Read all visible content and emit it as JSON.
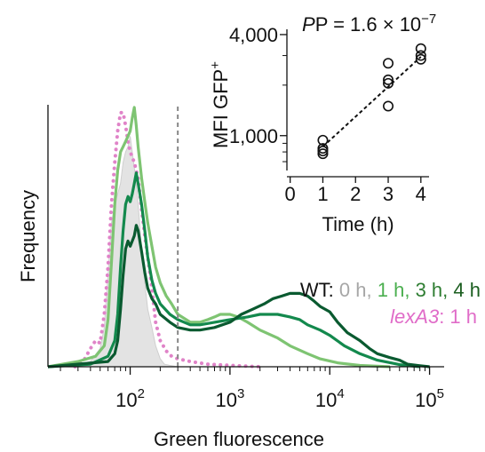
{
  "chart_data": [
    {
      "type": "line",
      "xlabel": "Green fluorescence",
      "ylabel": "Frequency",
      "x_scale": "log",
      "xlim": [
        15,
        140000
      ],
      "ylim": [
        0,
        1
      ],
      "x_ticks": [
        {
          "value": 100,
          "base": "10",
          "exp": "2"
        },
        {
          "value": 1000,
          "base": "10",
          "exp": "3"
        },
        {
          "value": 10000,
          "base": "10",
          "exp": "4"
        },
        {
          "value": 100000,
          "base": "10",
          "exp": "5"
        }
      ],
      "gate": 300,
      "grid": false,
      "legend_position": "right",
      "legend": {
        "wt_prefix": "WT: ",
        "wt_entries": [
          {
            "label": "0 h",
            "color": "#a7a7a7"
          },
          {
            "label": "1 h",
            "color": "#4caf50"
          },
          {
            "label": "3 h",
            "color": "#2e7d32"
          },
          {
            "label": "4 h",
            "color": "#1b5e20"
          }
        ],
        "wt_separator": ", ",
        "mut_label": "lexA3",
        "mut_suffix": ": 1 h"
      },
      "series": [
        {
          "key": "wt0h",
          "style": "fill",
          "color": "#e3e3e3",
          "stroke": "#cfcfcf",
          "points": [
            [
              15,
              0
            ],
            [
              22,
              0.005
            ],
            [
              30,
              0.01
            ],
            [
              40,
              0.02
            ],
            [
              50,
              0.07
            ],
            [
              55,
              0.15
            ],
            [
              60,
              0.35
            ],
            [
              65,
              0.55
            ],
            [
              70,
              0.62
            ],
            [
              75,
              0.66
            ],
            [
              80,
              0.7
            ],
            [
              85,
              0.78
            ],
            [
              90,
              0.82
            ],
            [
              95,
              0.84
            ],
            [
              100,
              0.88
            ],
            [
              105,
              0.82
            ],
            [
              110,
              0.76
            ],
            [
              115,
              0.7
            ],
            [
              120,
              0.62
            ],
            [
              130,
              0.45
            ],
            [
              140,
              0.32
            ],
            [
              150,
              0.22
            ],
            [
              165,
              0.15
            ],
            [
              180,
              0.08
            ],
            [
              200,
              0.03
            ],
            [
              220,
              0.01
            ],
            [
              250,
              0.005
            ],
            [
              300,
              0
            ]
          ]
        },
        {
          "key": "lexA3",
          "style": "dotted",
          "color": "#e083c8",
          "points": [
            [
              28,
              0
            ],
            [
              35,
              0.03
            ],
            [
              40,
              0.07
            ],
            [
              45,
              0.1
            ],
            [
              50,
              0.09
            ],
            [
              55,
              0.2
            ],
            [
              60,
              0.38
            ],
            [
              65,
              0.62
            ],
            [
              70,
              0.78
            ],
            [
              75,
              0.9
            ],
            [
              80,
              0.97
            ],
            [
              85,
              0.97
            ],
            [
              90,
              0.92
            ],
            [
              95,
              0.86
            ],
            [
              100,
              0.82
            ],
            [
              110,
              0.78
            ],
            [
              120,
              0.72
            ],
            [
              130,
              0.6
            ],
            [
              140,
              0.5
            ],
            [
              150,
              0.42
            ],
            [
              165,
              0.3
            ],
            [
              180,
              0.17
            ],
            [
              200,
              0.1
            ],
            [
              230,
              0.06
            ],
            [
              260,
              0.04
            ],
            [
              300,
              0.03
            ],
            [
              400,
              0.02
            ],
            [
              600,
              0.01
            ],
            [
              1000,
              0.005
            ],
            [
              2000,
              0
            ]
          ]
        },
        {
          "key": "wt1h",
          "style": "line",
          "color": "#7ec472",
          "points": [
            [
              15,
              0
            ],
            [
              30,
              0.02
            ],
            [
              45,
              0.04
            ],
            [
              55,
              0.08
            ],
            [
              60,
              0.18
            ],
            [
              65,
              0.4
            ],
            [
              70,
              0.62
            ],
            [
              75,
              0.75
            ],
            [
              80,
              0.82
            ],
            [
              85,
              0.84
            ],
            [
              90,
              0.86
            ],
            [
              95,
              0.88
            ],
            [
              100,
              0.9
            ],
            [
              105,
              0.95
            ],
            [
              110,
              0.99
            ],
            [
              115,
              0.92
            ],
            [
              120,
              0.84
            ],
            [
              130,
              0.72
            ],
            [
              140,
              0.63
            ],
            [
              150,
              0.55
            ],
            [
              165,
              0.46
            ],
            [
              180,
              0.38
            ],
            [
              200,
              0.32
            ],
            [
              230,
              0.27
            ],
            [
              260,
              0.24
            ],
            [
              300,
              0.2
            ],
            [
              400,
              0.17
            ],
            [
              500,
              0.17
            ],
            [
              600,
              0.18
            ],
            [
              700,
              0.19
            ],
            [
              800,
              0.2
            ],
            [
              1000,
              0.2
            ],
            [
              1200,
              0.19
            ],
            [
              1500,
              0.17
            ],
            [
              2000,
              0.14
            ],
            [
              3000,
              0.11
            ],
            [
              4000,
              0.08
            ],
            [
              6000,
              0.05
            ],
            [
              8000,
              0.03
            ],
            [
              12000,
              0.015
            ],
            [
              20000,
              0.005
            ],
            [
              40000,
              0
            ]
          ]
        },
        {
          "key": "wt3h",
          "style": "line",
          "color": "#13894d",
          "points": [
            [
              15,
              0
            ],
            [
              40,
              0.01
            ],
            [
              60,
              0.04
            ],
            [
              70,
              0.1
            ],
            [
              75,
              0.2
            ],
            [
              80,
              0.38
            ],
            [
              85,
              0.52
            ],
            [
              90,
              0.62
            ],
            [
              95,
              0.65
            ],
            [
              100,
              0.63
            ],
            [
              105,
              0.66
            ],
            [
              110,
              0.7
            ],
            [
              115,
              0.74
            ],
            [
              120,
              0.7
            ],
            [
              130,
              0.62
            ],
            [
              140,
              0.52
            ],
            [
              150,
              0.42
            ],
            [
              165,
              0.33
            ],
            [
              180,
              0.28
            ],
            [
              200,
              0.24
            ],
            [
              250,
              0.2
            ],
            [
              300,
              0.18
            ],
            [
              400,
              0.16
            ],
            [
              500,
              0.16
            ],
            [
              700,
              0.17
            ],
            [
              1000,
              0.18
            ],
            [
              1500,
              0.19
            ],
            [
              2000,
              0.2
            ],
            [
              3000,
              0.2
            ],
            [
              4000,
              0.19
            ],
            [
              5000,
              0.18
            ],
            [
              6000,
              0.16
            ],
            [
              8000,
              0.14
            ],
            [
              10000,
              0.12
            ],
            [
              14000,
              0.08
            ],
            [
              20000,
              0.05
            ],
            [
              30000,
              0.025
            ],
            [
              50000,
              0.008
            ],
            [
              80000,
              0
            ]
          ]
        },
        {
          "key": "wt4h",
          "style": "line",
          "color": "#0a5a30",
          "points": [
            [
              15,
              0
            ],
            [
              60,
              0.02
            ],
            [
              70,
              0.05
            ],
            [
              75,
              0.1
            ],
            [
              80,
              0.22
            ],
            [
              85,
              0.35
            ],
            [
              90,
              0.45
            ],
            [
              95,
              0.48
            ],
            [
              100,
              0.46
            ],
            [
              105,
              0.48
            ],
            [
              110,
              0.5
            ],
            [
              115,
              0.54
            ],
            [
              120,
              0.52
            ],
            [
              130,
              0.44
            ],
            [
              140,
              0.36
            ],
            [
              150,
              0.3
            ],
            [
              165,
              0.26
            ],
            [
              180,
              0.24
            ],
            [
              200,
              0.2
            ],
            [
              250,
              0.17
            ],
            [
              300,
              0.15
            ],
            [
              400,
              0.14
            ],
            [
              500,
              0.14
            ],
            [
              700,
              0.15
            ],
            [
              1000,
              0.17
            ],
            [
              1300,
              0.2
            ],
            [
              1700,
              0.22
            ],
            [
              2200,
              0.24
            ],
            [
              2700,
              0.26
            ],
            [
              3300,
              0.27
            ],
            [
              4000,
              0.28
            ],
            [
              5000,
              0.28
            ],
            [
              6000,
              0.27
            ],
            [
              7000,
              0.25
            ],
            [
              8000,
              0.23
            ],
            [
              10000,
              0.21
            ],
            [
              12000,
              0.17
            ],
            [
              15000,
              0.13
            ],
            [
              20000,
              0.1
            ],
            [
              25000,
              0.07
            ],
            [
              30000,
              0.05
            ],
            [
              40000,
              0.035
            ],
            [
              50000,
              0.025
            ],
            [
              60000,
              0.01
            ],
            [
              80000,
              0.004
            ],
            [
              100000,
              0
            ]
          ]
        }
      ]
    },
    {
      "type": "scatter",
      "title": "P = 1.6 × 10",
      "title_exp": "−7",
      "xlabel": "Time (h)",
      "ylabel": "MFI GFP",
      "ylabel_sup": "+",
      "xlim": [
        -0.1,
        4.25
      ],
      "ylim": [
        620,
        4300
      ],
      "y_scale": "log",
      "x_ticks": [
        0,
        1,
        2,
        3,
        4
      ],
      "y_ticks": [
        {
          "value": 1000,
          "label": "1,000"
        },
        {
          "value": 4000,
          "label": "4,000"
        }
      ],
      "marker": "open-circle",
      "trend_line": {
        "style": "dashed",
        "from": [
          1,
          860
        ],
        "to": [
          4,
          2950
        ]
      },
      "x": [
        1,
        1,
        1,
        1,
        3,
        3,
        3,
        3,
        4,
        4,
        4
      ],
      "y": [
        940,
        840,
        810,
        780,
        2700,
        2150,
        2050,
        1500,
        3300,
        3000,
        2850
      ]
    }
  ]
}
